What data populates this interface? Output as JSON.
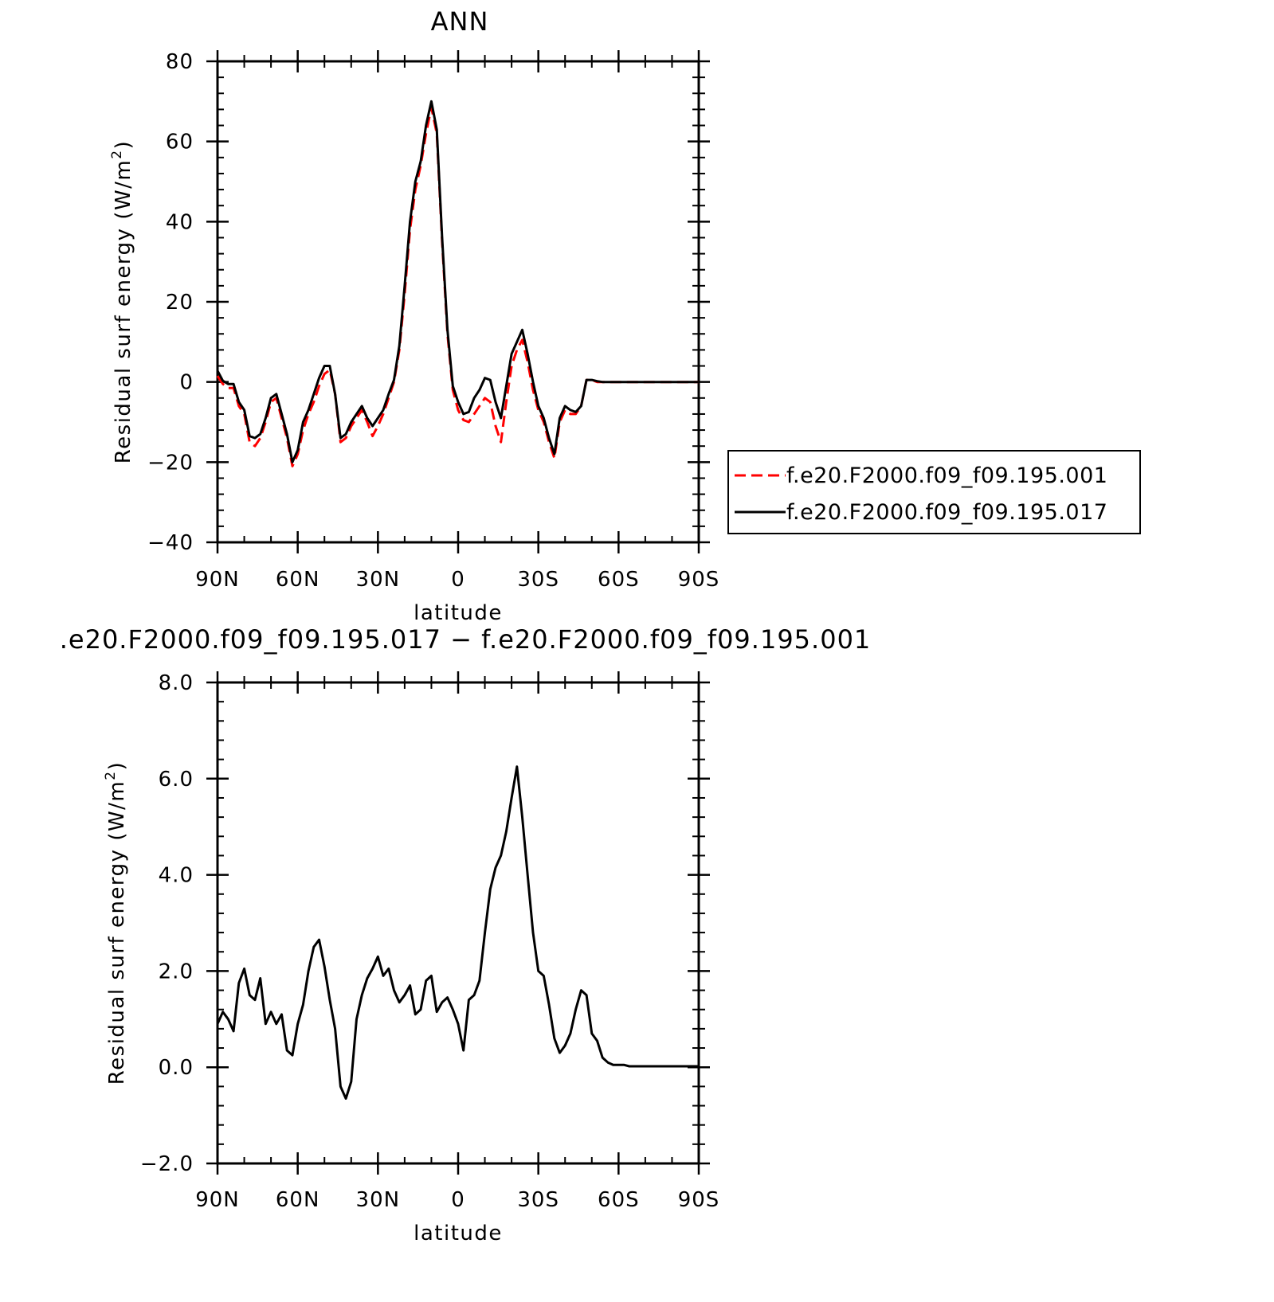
{
  "chart_data": [
    {
      "type": "line",
      "title": "ANN",
      "xlabel": "latitude",
      "ylabel": "Residual surf energy (W/m",
      "ylabel_sup": "2",
      "ylabel_end": ")",
      "xlim": [
        90,
        -90
      ],
      "ylim": [
        -40,
        80
      ],
      "x_ticks": [
        90,
        60,
        30,
        0,
        -30,
        -60,
        -90
      ],
      "x_tick_labels": [
        "90N",
        "60N",
        "30N",
        "0",
        "30S",
        "60S",
        "90S"
      ],
      "y_ticks": [
        -40,
        -20,
        0,
        20,
        40,
        60,
        80
      ],
      "y_tick_labels": [
        "−40",
        "−20",
        "0",
        "20",
        "40",
        "60",
        "80"
      ],
      "legend_position": "right",
      "series": [
        {
          "name": "f.e20.F2000.f09_f09.195.001",
          "color": "#ff0000",
          "dash": "dashed",
          "x": [
            90,
            88,
            86,
            84,
            82,
            80,
            78,
            76,
            74,
            72,
            70,
            68,
            66,
            64,
            62,
            60,
            58,
            56,
            54,
            52,
            50,
            48,
            46,
            44,
            42,
            40,
            38,
            36,
            34,
            32,
            30,
            28,
            26,
            24,
            22,
            20,
            18,
            16,
            14,
            12,
            10,
            8,
            6,
            4,
            2,
            0,
            -2,
            -4,
            -6,
            -8,
            -10,
            -12,
            -14,
            -16,
            -18,
            -20,
            -22,
            -24,
            -26,
            -28,
            -30,
            -32,
            -34,
            -36,
            -38,
            -40,
            -42,
            -44,
            -46,
            -48,
            -50,
            -52,
            -54,
            -56,
            -58,
            -60,
            -62,
            -64,
            -66,
            -68,
            -70,
            -72,
            -74,
            -76,
            -78,
            -80,
            -82,
            -84,
            -86,
            -88,
            -90
          ],
          "y": [
            1.5,
            -0.5,
            -1.5,
            -1.5,
            -6,
            -8,
            -15,
            -16,
            -14,
            -10,
            -5,
            -4,
            -9,
            -14,
            -21,
            -18,
            -12,
            -8,
            -5,
            -1,
            2,
            3,
            -3,
            -15,
            -14,
            -11,
            -9,
            -7,
            -10,
            -13.5,
            -11,
            -8,
            -4,
            0,
            8,
            22,
            38,
            48,
            54,
            62,
            68.5,
            62,
            35,
            12,
            -2,
            -7,
            -9.5,
            -10,
            -8,
            -6,
            -4,
            -5,
            -11,
            -15,
            -5,
            4,
            8,
            10.5,
            5,
            -2,
            -7,
            -10,
            -15,
            -19,
            -10,
            -7,
            -8,
            -8,
            -6,
            0.5,
            0.5,
            0,
            0,
            0,
            0,
            0,
            0,
            0,
            0,
            0,
            0,
            0,
            0,
            0,
            0,
            0,
            0,
            0,
            0,
            0,
            0
          ]
        },
        {
          "name": "f.e20.F2000.f09_f09.195.017",
          "color": "#000000",
          "dash": "solid",
          "x": [
            90,
            88,
            86,
            84,
            82,
            80,
            78,
            76,
            74,
            72,
            70,
            68,
            66,
            64,
            62,
            60,
            58,
            56,
            54,
            52,
            50,
            48,
            46,
            44,
            42,
            40,
            38,
            36,
            34,
            32,
            30,
            28,
            26,
            24,
            22,
            20,
            18,
            16,
            14,
            12,
            10,
            8,
            6,
            4,
            2,
            0,
            -2,
            -4,
            -6,
            -8,
            -10,
            -12,
            -14,
            -16,
            -18,
            -20,
            -22,
            -24,
            -26,
            -28,
            -30,
            -32,
            -34,
            -36,
            -38,
            -40,
            -42,
            -44,
            -46,
            -48,
            -50,
            -52,
            -54,
            -56,
            -58,
            -60,
            -62,
            -64,
            -66,
            -68,
            -70,
            -72,
            -74,
            -76,
            -78,
            -80,
            -82,
            -84,
            -86,
            -88,
            -90
          ],
          "y": [
            2.8,
            0.3,
            -0.5,
            -0.5,
            -5,
            -7,
            -13.5,
            -14,
            -13,
            -9,
            -4,
            -3,
            -8,
            -13,
            -20,
            -17,
            -10,
            -7,
            -3,
            1,
            4,
            4,
            -3,
            -14,
            -13,
            -10,
            -8,
            -6,
            -9,
            -11,
            -9,
            -7,
            -3,
            0.5,
            9,
            24,
            40,
            50,
            55,
            64,
            70,
            63,
            36,
            13,
            -1,
            -5,
            -8,
            -7.5,
            -4,
            -2,
            1,
            0.5,
            -5,
            -9,
            -1,
            7,
            10,
            13,
            7,
            0,
            -6,
            -9,
            -14,
            -18,
            -9,
            -6,
            -7,
            -7.5,
            -6,
            0.5,
            0.5,
            0.2,
            0,
            0,
            0,
            0,
            0,
            0,
            0,
            0,
            0,
            0,
            0,
            0,
            0,
            0,
            0,
            0,
            0,
            0,
            0
          ]
        }
      ]
    },
    {
      "type": "line",
      "title": ".e20.F2000.f09_f09.195.017 − f.e20.F2000.f09_f09.195.001",
      "xlabel": "latitude",
      "ylabel": "Residual surf energy (W/m",
      "ylabel_sup": "2",
      "ylabel_end": ")",
      "xlim": [
        90,
        -90
      ],
      "ylim": [
        -2,
        8
      ],
      "x_ticks": [
        90,
        60,
        30,
        0,
        -30,
        -60,
        -90
      ],
      "x_tick_labels": [
        "90N",
        "60N",
        "30N",
        "0",
        "30S",
        "60S",
        "90S"
      ],
      "y_ticks": [
        -2,
        0,
        2,
        4,
        6,
        8
      ],
      "y_tick_labels": [
        "−2.0",
        "0.0",
        "2.0",
        "4.0",
        "6.0",
        "8.0"
      ],
      "series": [
        {
          "color": "#000000",
          "dash": "solid",
          "x": [
            90,
            88,
            86,
            84,
            82,
            80,
            78,
            76,
            74,
            72,
            70,
            68,
            66,
            64,
            62,
            60,
            58,
            56,
            54,
            52,
            50,
            48,
            46,
            44,
            42,
            40,
            38,
            36,
            34,
            32,
            30,
            28,
            26,
            24,
            22,
            20,
            18,
            16,
            14,
            12,
            10,
            8,
            6,
            4,
            2,
            0,
            -2,
            -4,
            -6,
            -8,
            -10,
            -12,
            -14,
            -16,
            -18,
            -20,
            -22,
            -24,
            -26,
            -28,
            -30,
            -32,
            -34,
            -36,
            -38,
            -40,
            -42,
            -44,
            -46,
            -48,
            -50,
            -52,
            -54,
            -56,
            -58,
            -60,
            -62,
            -64,
            -66,
            -68,
            -70,
            -72,
            -74,
            -76,
            -78,
            -80,
            -82,
            -84,
            -86,
            -88,
            -90
          ],
          "y": [
            0.9,
            1.15,
            1.0,
            0.75,
            1.75,
            2.05,
            1.5,
            1.4,
            1.85,
            0.9,
            1.15,
            0.9,
            1.1,
            0.35,
            0.25,
            0.9,
            1.3,
            2.0,
            2.5,
            2.65,
            2.1,
            1.4,
            0.8,
            -0.4,
            -0.65,
            -0.3,
            1.0,
            1.5,
            1.85,
            2.05,
            2.3,
            1.9,
            2.05,
            1.6,
            1.35,
            1.5,
            1.7,
            1.1,
            1.2,
            1.8,
            1.9,
            1.15,
            1.35,
            1.45,
            1.2,
            0.9,
            0.35,
            1.4,
            1.5,
            1.8,
            2.8,
            3.7,
            4.15,
            4.4,
            4.9,
            5.6,
            6.25,
            5.2,
            4.0,
            2.8,
            2.0,
            1.9,
            1.3,
            0.6,
            0.3,
            0.45,
            0.7,
            1.2,
            1.6,
            1.5,
            0.7,
            0.55,
            0.2,
            0.1,
            0.05,
            0.05,
            0.05,
            0.02,
            0.02,
            0.02,
            0.02,
            0.02,
            0.02,
            0.02,
            0.02,
            0.02,
            0.02,
            0.02,
            0.02,
            0.02,
            0.02
          ]
        }
      ]
    }
  ]
}
